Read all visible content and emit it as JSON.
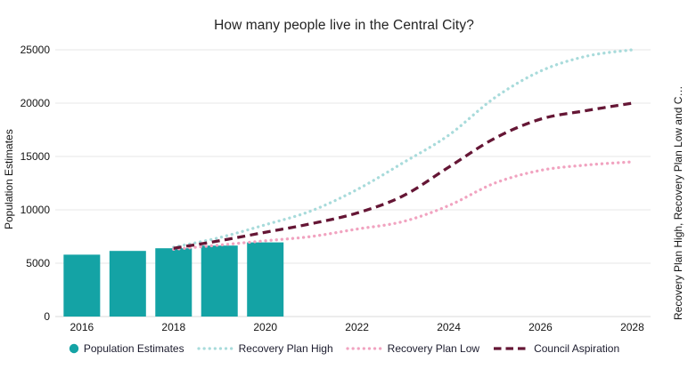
{
  "title": "How many people live in the Central City?",
  "colors": {
    "bar_teal": "#14a3a5",
    "recovery_high": "#a8dbdb",
    "recovery_low": "#f1a3c0",
    "council_aspiration": "#651635",
    "gridline": "#e7e7e7",
    "baseline": "#d8d8d8",
    "tick_text": "#141414",
    "title_text": "#232323"
  },
  "chart_data": {
    "type": "bar+line",
    "title": "How many people live in the Central City?",
    "ylabel_left": "Population Estimates",
    "ylabel_right": "Recovery Plan High, Recovery Plan Low and C…",
    "legend_position": "bottom",
    "grid": "horizontal",
    "xlim": [
      2015.42,
      2028.4
    ],
    "ylim": [
      0,
      25000
    ],
    "x_tick_labels": [
      "2016",
      "2018",
      "2020",
      "2022",
      "2024",
      "2026",
      "2028"
    ],
    "x_tick_values": [
      2016,
      2018,
      2020,
      2022,
      2024,
      2026,
      2028
    ],
    "y_tick_labels": [
      "0",
      "5000",
      "10000",
      "15000",
      "20000",
      "25000"
    ],
    "y_tick_values": [
      0,
      5000,
      10000,
      15000,
      20000,
      25000
    ],
    "bars": {
      "name": "Population Estimates",
      "color": "#14a3a5",
      "x": [
        2016,
        2017,
        2018,
        2019,
        2020
      ],
      "values": [
        5800,
        6150,
        6400,
        6650,
        6950
      ]
    },
    "series": [
      {
        "name": "Recovery Plan High",
        "style": "dotted",
        "color": "#a8dbdb",
        "x": [
          2018,
          2019,
          2020,
          2021,
          2022,
          2023,
          2024,
          2025,
          2026,
          2027,
          2028
        ],
        "values": [
          6500,
          7400,
          8600,
          9900,
          11900,
          14400,
          17000,
          20500,
          23000,
          24400,
          25000
        ]
      },
      {
        "name": "Recovery Plan Low",
        "style": "dotted",
        "color": "#f1a3c0",
        "x": [
          2018,
          2019,
          2020,
          2021,
          2022,
          2023,
          2024,
          2025,
          2026,
          2027,
          2028
        ],
        "values": [
          6300,
          6700,
          7100,
          7500,
          8200,
          8900,
          10400,
          12500,
          13700,
          14200,
          14500
        ]
      },
      {
        "name": "Council Aspiration",
        "style": "dashed",
        "color": "#651635",
        "x": [
          2018,
          2019,
          2020,
          2021,
          2022,
          2023,
          2024,
          2025,
          2026,
          2027,
          2028
        ],
        "values": [
          6400,
          7100,
          7900,
          8700,
          9700,
          11300,
          14000,
          16700,
          18500,
          19300,
          20000
        ]
      }
    ],
    "legend": [
      {
        "label": "Population Estimates",
        "marker": "dot",
        "color": "#14a3a5"
      },
      {
        "label": "Recovery Plan High",
        "marker": "dotted",
        "color": "#a8dbdb"
      },
      {
        "label": "Recovery Plan Low",
        "marker": "dotted",
        "color": "#f1a3c0"
      },
      {
        "label": "Council Aspiration",
        "marker": "dashed",
        "color": "#651635"
      }
    ]
  }
}
